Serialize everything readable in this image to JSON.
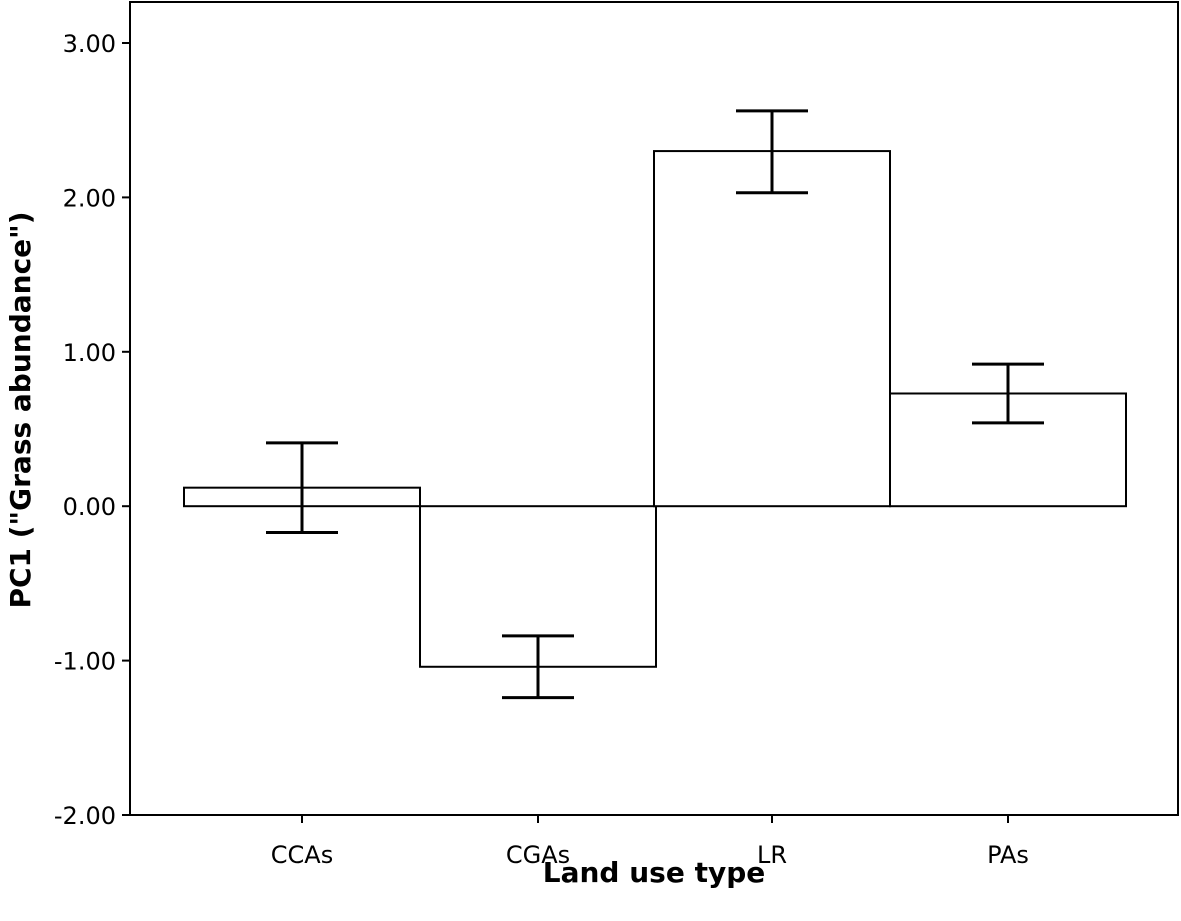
{
  "chart_data": {
    "type": "bar",
    "categories": [
      "CCAs",
      "CGAs",
      "LR",
      "PAs"
    ],
    "values": [
      0.12,
      -1.04,
      2.3,
      0.73
    ],
    "error_bars": [
      {
        "low": -0.17,
        "high": 0.41
      },
      {
        "low": -1.24,
        "high": -0.84
      },
      {
        "low": 2.03,
        "high": 2.56
      },
      {
        "low": 0.54,
        "high": 0.92
      }
    ],
    "title": "",
    "xlabel": "Land use type",
    "ylabel": "PC1 (\"Grass abundance\")",
    "ylim": [
      -2.0,
      3.0
    ],
    "yticks": [
      -2.0,
      -1.0,
      0.0,
      1.0,
      2.0,
      3.0
    ],
    "ytick_labels": [
      "-2.00",
      "-1.00",
      "0.00",
      "1.00",
      "2.00",
      "3.00"
    ],
    "grid": false,
    "legend": "none",
    "colors": {
      "bar_fill": "#ffffff",
      "bar_stroke": "#000000",
      "error_bar": "#000000"
    }
  }
}
